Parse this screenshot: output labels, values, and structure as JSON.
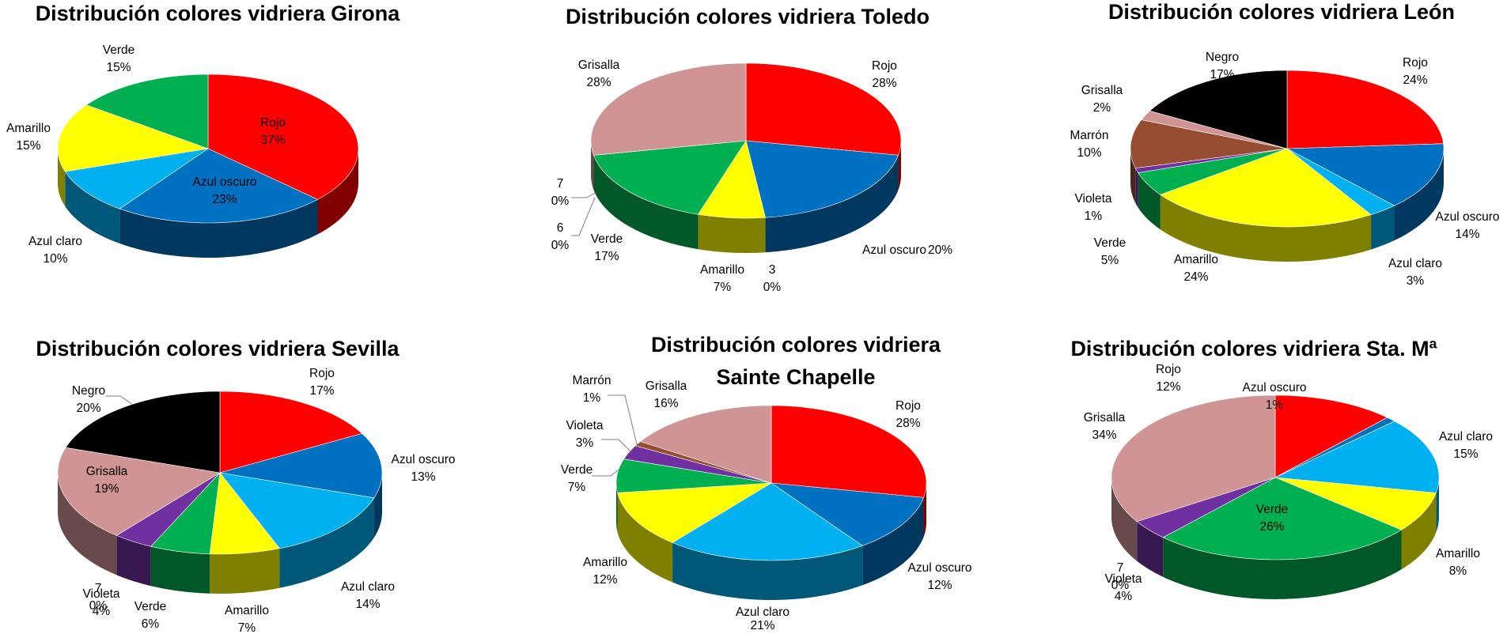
{
  "chart_data": [
    {
      "type": "pie",
      "title": "Distribución colores vidriera  Girona",
      "slices": [
        {
          "name": "Rojo",
          "value": 37,
          "label": "37%",
          "color": "#ff0000"
        },
        {
          "name": "Azul oscuro",
          "value": 23,
          "label": "23%",
          "color": "#0070c0"
        },
        {
          "name": "Azul claro",
          "value": 10,
          "label": "10%",
          "color": "#00b0f0"
        },
        {
          "name": "Amarillo",
          "value": 15,
          "label": "15%",
          "color": "#ffff00"
        },
        {
          "name": "Verde",
          "value": 15,
          "label": "15%",
          "color": "#00b050"
        }
      ]
    },
    {
      "type": "pie",
      "title": "Distribución colores vidriera Toledo",
      "slices": [
        {
          "name": "Rojo",
          "value": 28,
          "label": "28%",
          "color": "#ff0000"
        },
        {
          "name": "Azul oscuro",
          "value": 20,
          "label": "20%",
          "color": "#0070c0"
        },
        {
          "name": "3",
          "value": 0,
          "label": "0%",
          "color": "#00b0f0"
        },
        {
          "name": "Amarillo",
          "value": 7,
          "label": "7%",
          "color": "#ffff00"
        },
        {
          "name": "Verde",
          "value": 17,
          "label": "17%",
          "color": "#00b050"
        },
        {
          "name": "6",
          "value": 0,
          "label": "0%",
          "color": "#7030a0"
        },
        {
          "name": "7",
          "value": 0,
          "label": "0%",
          "color": "#974d32"
        },
        {
          "name": "Grisalla",
          "value": 28,
          "label": "28%",
          "color": "#d09494"
        }
      ]
    },
    {
      "type": "pie",
      "title": "Distribución colores vidriera León",
      "slices": [
        {
          "name": "Rojo",
          "value": 24,
          "label": "24%",
          "color": "#ff0000"
        },
        {
          "name": "Azul oscuro",
          "value": 14,
          "label": "14%",
          "color": "#0070c0"
        },
        {
          "name": "Azul claro",
          "value": 3,
          "label": "3%",
          "color": "#00b0f0"
        },
        {
          "name": "Amarillo",
          "value": 24,
          "label": "24%",
          "color": "#ffff00"
        },
        {
          "name": "Verde",
          "value": 5,
          "label": "5%",
          "color": "#00b050"
        },
        {
          "name": "Violeta",
          "value": 1,
          "label": "1%",
          "color": "#7030a0"
        },
        {
          "name": "Marrón",
          "value": 10,
          "label": "10%",
          "color": "#974d32"
        },
        {
          "name": "Grisalla",
          "value": 2,
          "label": "2%",
          "color": "#d09494"
        },
        {
          "name": "Negro",
          "value": 17,
          "label": "17%",
          "color": "#000000"
        }
      ]
    },
    {
      "type": "pie",
      "title": "Distribución colores vidriera Sevilla",
      "slices": [
        {
          "name": "Rojo",
          "value": 17,
          "label": "17%",
          "color": "#ff0000"
        },
        {
          "name": "Azul oscuro",
          "value": 13,
          "label": "13%",
          "color": "#0070c0"
        },
        {
          "name": "Azul claro",
          "value": 14,
          "label": "14%",
          "color": "#00b0f0"
        },
        {
          "name": "Amarillo",
          "value": 7,
          "label": "7%",
          "color": "#ffff00"
        },
        {
          "name": "Verde",
          "value": 6,
          "label": "6%",
          "color": "#00b050"
        },
        {
          "name": "Violeta",
          "value": 4,
          "label": "4%",
          "color": "#7030a0"
        },
        {
          "name": "7",
          "value": 0,
          "label": "0%",
          "color": "#974d32"
        },
        {
          "name": "Grisalla",
          "value": 19,
          "label": "19%",
          "color": "#d09494"
        },
        {
          "name": "Negro",
          "value": 20,
          "label": "20%",
          "color": "#000000"
        }
      ]
    },
    {
      "type": "pie",
      "title": [
        "Distribución colores vidriera",
        "Sainte Chapelle"
      ],
      "slices": [
        {
          "name": "Rojo",
          "value": 28,
          "label": "28%",
          "color": "#ff0000"
        },
        {
          "name": "Azul oscuro",
          "value": 12,
          "label": "12%",
          "color": "#0070c0"
        },
        {
          "name": "Azul claro",
          "value": 21,
          "label": "21%",
          "color": "#00b0f0"
        },
        {
          "name": "Amarillo",
          "value": 12,
          "label": "12%",
          "color": "#ffff00"
        },
        {
          "name": "Verde",
          "value": 7,
          "label": "7%",
          "color": "#00b050"
        },
        {
          "name": "Violeta",
          "value": 3,
          "label": "3%",
          "color": "#7030a0"
        },
        {
          "name": "Marrón",
          "value": 1,
          "label": "1%",
          "color": "#974d32"
        },
        {
          "name": "Grisalla",
          "value": 16,
          "label": "16%",
          "color": "#d09494"
        }
      ]
    },
    {
      "type": "pie",
      "title": "Distribución colores vidriera Sta. Mª",
      "slices": [
        {
          "name": "Rojo",
          "value": 12,
          "label": "12%",
          "color": "#ff0000"
        },
        {
          "name": "Azul oscuro",
          "value": 1,
          "label": "1%",
          "color": "#0070c0"
        },
        {
          "name": "Azul claro",
          "value": 15,
          "label": "15%",
          "color": "#00b0f0"
        },
        {
          "name": "Amarillo",
          "value": 8,
          "label": "8%",
          "color": "#ffff00"
        },
        {
          "name": "Verde",
          "value": 26,
          "label": "26%",
          "color": "#00b050"
        },
        {
          "name": "Violeta",
          "value": 4,
          "label": "4%",
          "color": "#7030a0"
        },
        {
          "name": "7",
          "value": 0,
          "label": "0%",
          "color": "#974d32"
        },
        {
          "name": "Grisalla",
          "value": 34,
          "label": "34%",
          "color": "#d09494"
        }
      ]
    }
  ]
}
